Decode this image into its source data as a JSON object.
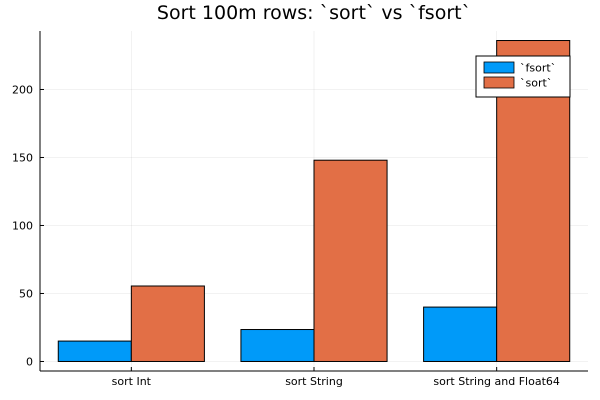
{
  "chart_data": {
    "type": "bar",
    "title": "Sort 100m rows: `sort` vs `fsort`",
    "xlabel": "",
    "ylabel": "",
    "categories": [
      "sort Int",
      "sort String",
      "sort String and Float64"
    ],
    "series": [
      {
        "name": "`fsort`",
        "color": "#009AF9",
        "values": [
          15,
          23.5,
          40
        ]
      },
      {
        "name": "`sort`",
        "color": "#E26F46",
        "values": [
          55.5,
          148,
          236
        ]
      }
    ],
    "ylim": [
      -7,
      243
    ],
    "yticks": [
      0,
      50,
      100,
      150,
      200
    ],
    "grid": true,
    "legend_position": "top-right"
  }
}
